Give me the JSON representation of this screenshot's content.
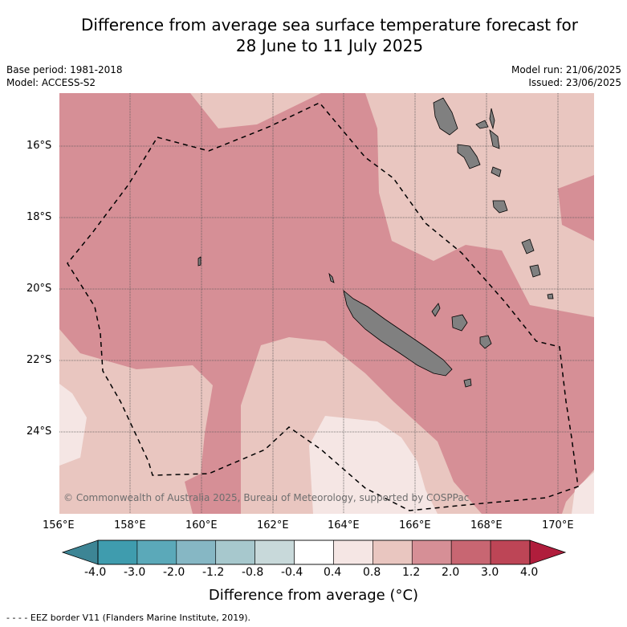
{
  "title_line1": "Difference from average sea surface temperature forecast for",
  "title_line2": "28 June to 11 July 2025",
  "meta_left": [
    "Base period: 1981-2018",
    "Model: ACCESS-S2"
  ],
  "meta_right": [
    "Model run: 21/06/2025",
    "Issued: 23/06/2025"
  ],
  "x_ticks": [
    "156°E",
    "158°E",
    "160°E",
    "162°E",
    "164°E",
    "166°E",
    "168°E",
    "170°E"
  ],
  "y_ticks": [
    "16°S",
    "18°S",
    "20°S",
    "22°S",
    "24°S"
  ],
  "copyright": "© Commonwealth of Australia 2025, Bureau of Meteorology, supported by COSPPac",
  "colorbar": {
    "title": "Difference from average (°C)",
    "labels": [
      "-4.0",
      "-3.0",
      "-2.0",
      "-1.2",
      "-0.8",
      "-0.4",
      "0.4",
      "0.8",
      "1.2",
      "2.0",
      "3.0",
      "4.0"
    ],
    "colors": [
      "#3f9cae",
      "#5ba9b9",
      "#86b7c4",
      "#a7c8cd",
      "#c8d9da",
      "#ffffff",
      "#f5e6e4",
      "#e9c6c0",
      "#d68f96",
      "#c86672",
      "#bd4556"
    ],
    "under_color": "#3d8595",
    "over_color": "#b01d3c"
  },
  "footer": "- - - - EEZ border V11 (Flanders Marine Institute, 2019).",
  "colors": {
    "land": "#808080",
    "grid": "#555555"
  }
}
